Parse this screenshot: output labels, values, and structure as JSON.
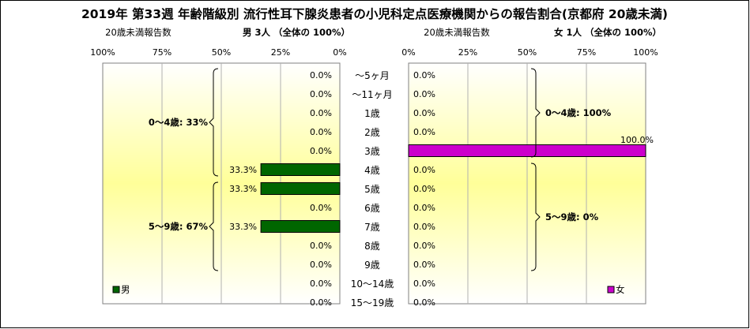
{
  "chart_data": {
    "type": "bar",
    "title": "2019年 第33週 年齢階級別 流行性耳下腺炎患者の小児科定点医療機関からの報告割合(京都府 20歳未満)",
    "categories": [
      "～5ヶ月",
      "～11ヶ月",
      "1歳",
      "2歳",
      "3歳",
      "4歳",
      "5歳",
      "6歳",
      "7歳",
      "8歳",
      "9歳",
      "10～14歳",
      "15～19歳"
    ],
    "panels": [
      {
        "sublabel": "20歳未満報告数",
        "header": "男  3人 （全体の  100%）",
        "ticks": [
          "100%",
          "75%",
          "50%",
          "25%",
          "0%"
        ],
        "xlim": [
          0,
          100
        ],
        "reversed": true,
        "series": [
          {
            "name": "男",
            "color": "#006600",
            "values": [
              0.0,
              0.0,
              0.0,
              0.0,
              0.0,
              33.3,
              33.3,
              0.0,
              33.3,
              0.0,
              0.0,
              0.0,
              0.0
            ]
          }
        ],
        "value_labels": [
          "0.0%",
          "0.0%",
          "0.0%",
          "0.0%",
          "0.0%",
          "33.3%",
          "33.3%",
          "0.0%",
          "33.3%",
          "0.0%",
          "0.0%",
          "0.0%",
          "0.0%"
        ],
        "brackets": [
          {
            "label": "0～4歳: 33%",
            "from": 0,
            "to": 5
          },
          {
            "label": "5～9歳: 67%",
            "from": 6,
            "to": 10
          }
        ],
        "legend": "男"
      },
      {
        "sublabel": "20歳未満報告数",
        "header": "女  1人 （全体の  100%）",
        "ticks": [
          "0%",
          "25%",
          "50%",
          "75%",
          "100%"
        ],
        "xlim": [
          0,
          100
        ],
        "reversed": false,
        "series": [
          {
            "name": "女",
            "color": "#cc00cc",
            "values": [
              0.0,
              0.0,
              0.0,
              0.0,
              100.0,
              0.0,
              0.0,
              0.0,
              0.0,
              0.0,
              0.0,
              0.0,
              0.0
            ]
          }
        ],
        "value_labels": [
          "0.0%",
          "0.0%",
          "0.0%",
          "0.0%",
          "100.0%",
          "0.0%",
          "0.0%",
          "0.0%",
          "0.0%",
          "0.0%",
          "0.0%",
          "0.0%",
          "0.0%"
        ],
        "brackets": [
          {
            "label": "0～4歳: 100%",
            "from": 0,
            "to": 4
          },
          {
            "label": "5～9歳: 0%",
            "from": 5,
            "to": 10
          }
        ],
        "legend": "女"
      }
    ],
    "grid": true
  }
}
